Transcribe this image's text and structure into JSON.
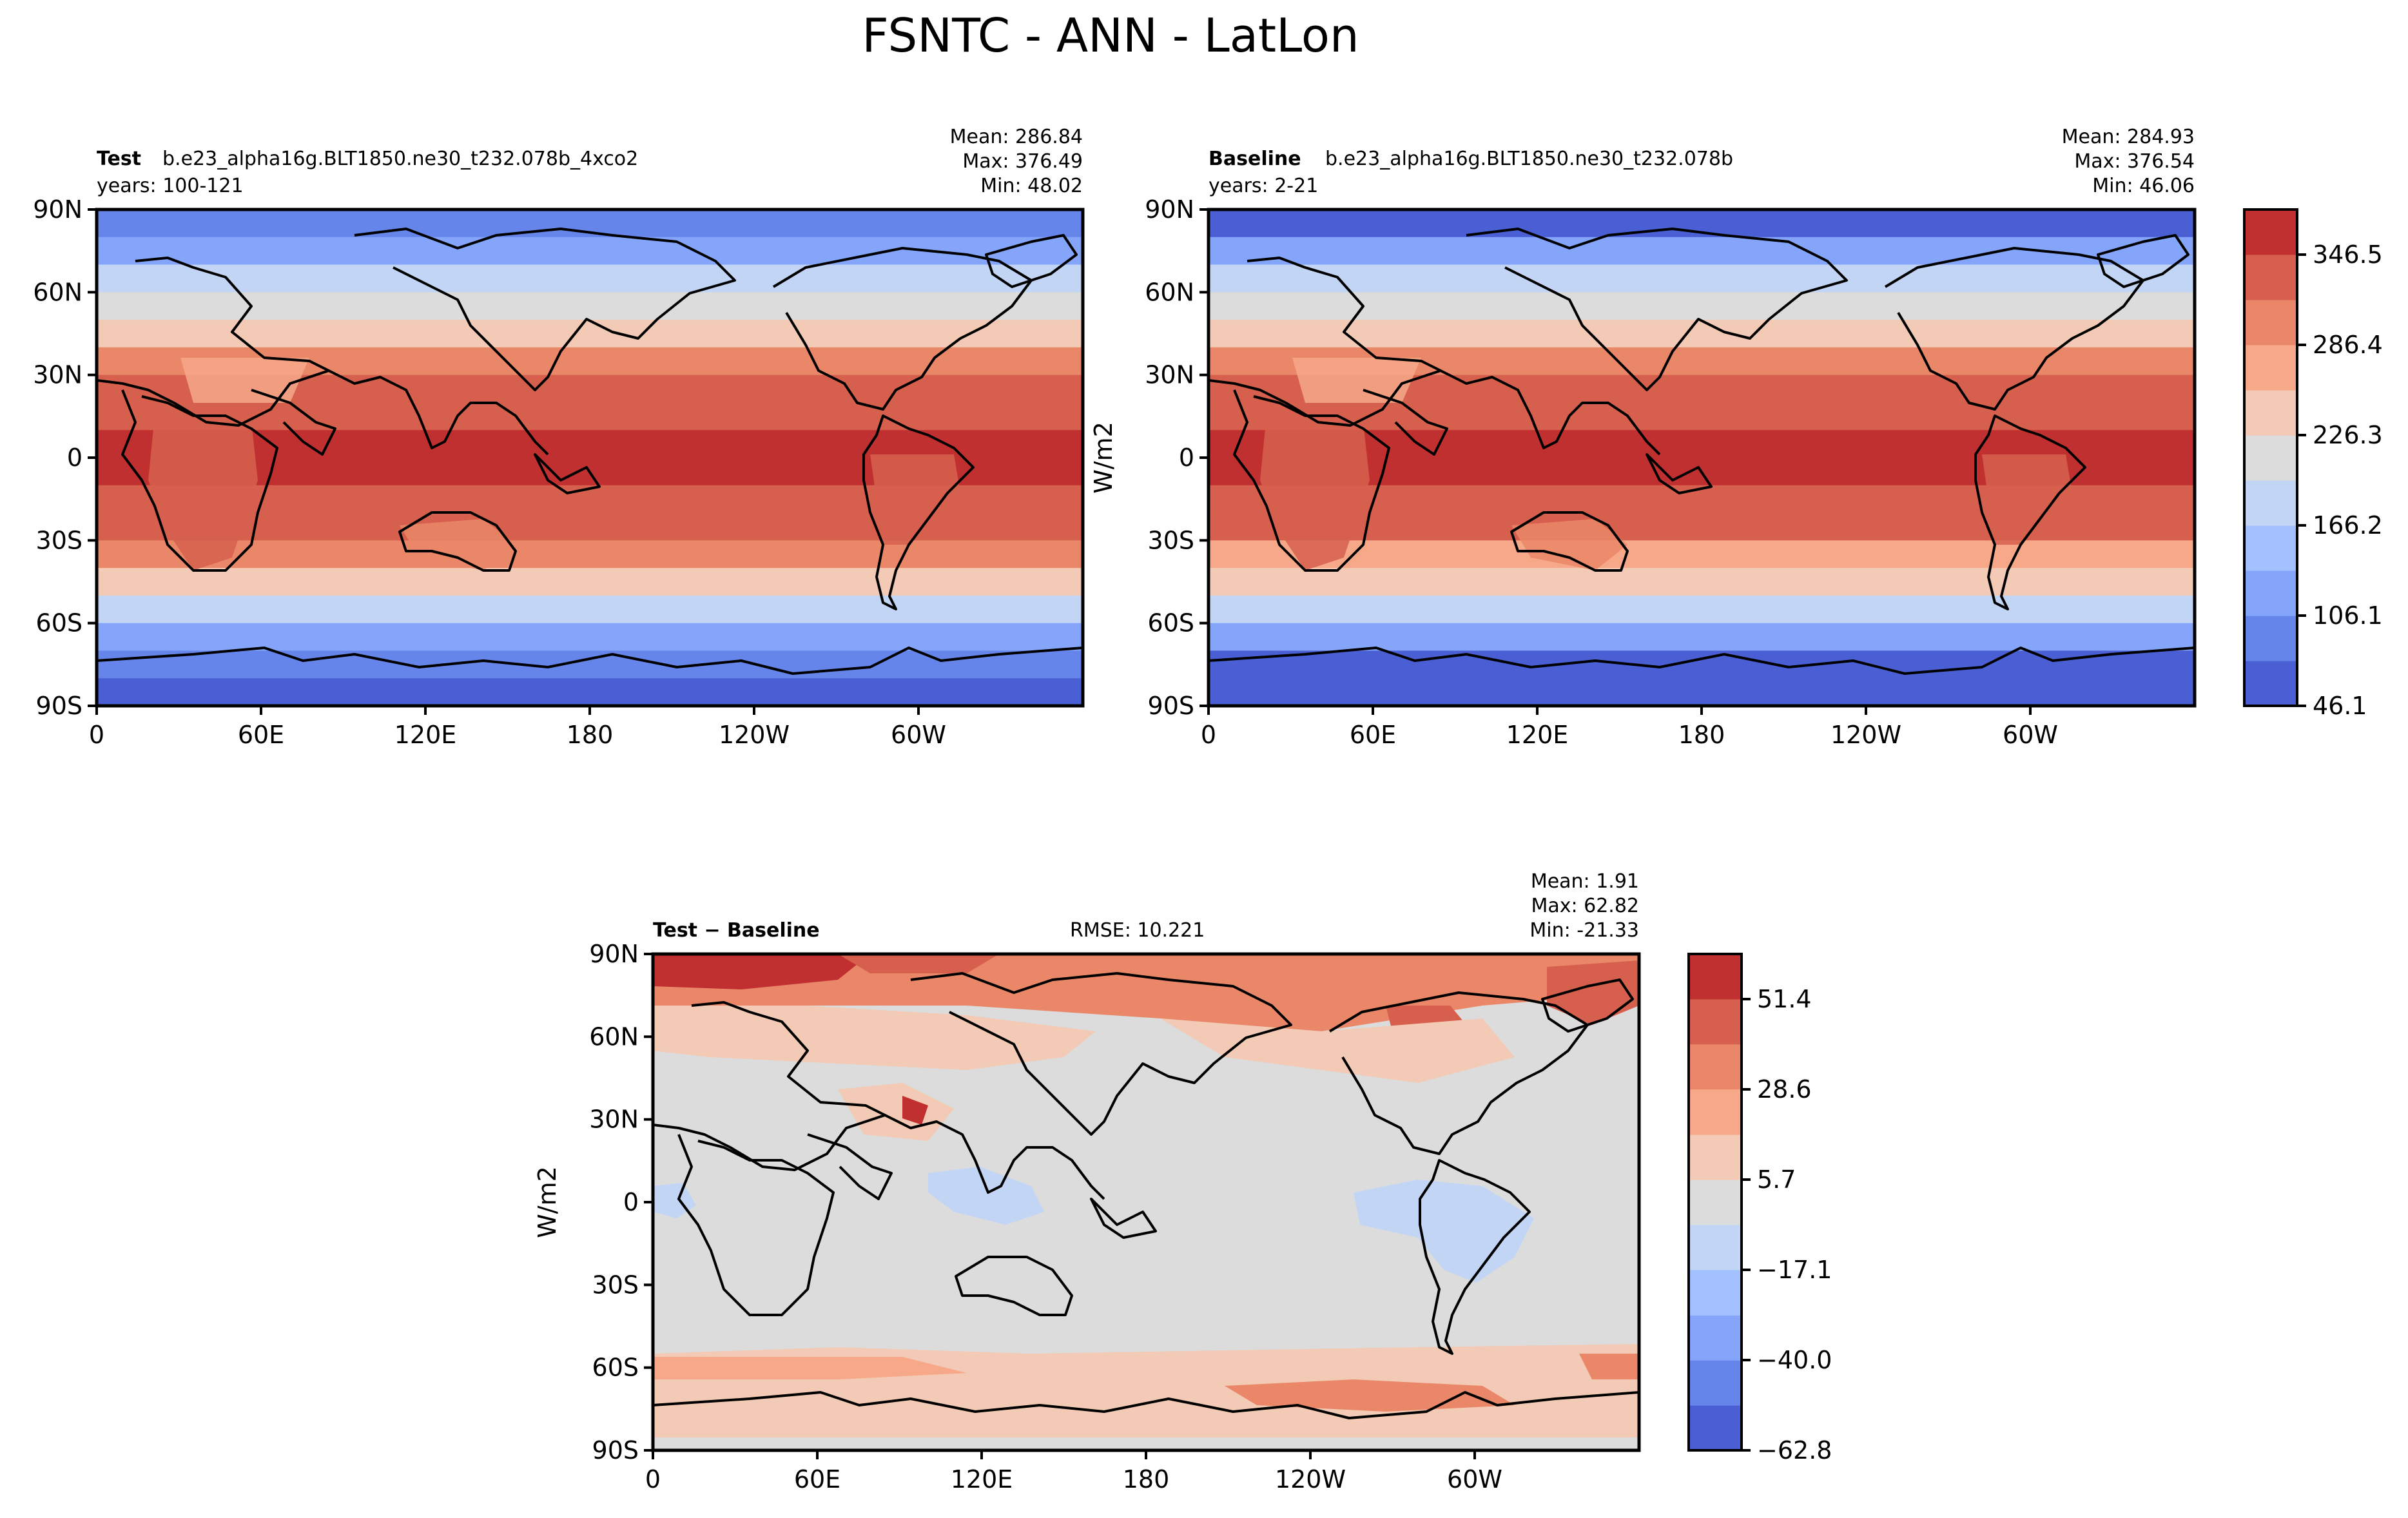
{
  "figure_title": "FSNTC - ANN - LatLon",
  "chart_data": [
    {
      "type": "heatmap",
      "panel": "test",
      "title_bold": "Test",
      "case_name": "b.e23_alpha16g.BLT1850.ne30_t232.078b_4xco2",
      "years": "years: 100-121",
      "stats": {
        "mean": "Mean: 286.84",
        "max": "Max: 376.49",
        "min": "Min: 48.02"
      },
      "x_ticks": [
        "0",
        "60E",
        "120E",
        "180",
        "120W",
        "60W"
      ],
      "y_ticks": [
        "90N",
        "60N",
        "30N",
        "0",
        "30S",
        "60S",
        "90S"
      ],
      "ylabel": "",
      "zonal_profile": {
        "lat": [
          90,
          80,
          70,
          60,
          50,
          40,
          30,
          20,
          10,
          0,
          -10,
          -20,
          -30,
          -40,
          -50,
          -60,
          -70,
          -80,
          -90
        ],
        "value": [
          90,
          110,
          160,
          210,
          235,
          275,
          310,
          335,
          350,
          352,
          350,
          335,
          305,
          270,
          215,
          160,
          95,
          60,
          50
        ]
      }
    },
    {
      "type": "heatmap",
      "panel": "baseline",
      "title_bold": "Baseline",
      "case_name": "b.e23_alpha16g.BLT1850.ne30_t232.078b",
      "years": "years: 2-21",
      "stats": {
        "mean": "Mean: 284.93",
        "max": "Max: 376.54",
        "min": "Min: 46.06"
      },
      "x_ticks": [
        "0",
        "60E",
        "120E",
        "180",
        "120W",
        "60W"
      ],
      "y_ticks": [
        "90N",
        "60N",
        "30N",
        "0",
        "30S",
        "60S",
        "90S"
      ],
      "ylabel": "W/m2",
      "zonal_profile": {
        "lat": [
          90,
          80,
          70,
          60,
          50,
          40,
          30,
          20,
          10,
          0,
          -10,
          -20,
          -30,
          -40,
          -50,
          -60,
          -70,
          -80,
          -90
        ],
        "value": [
          60,
          85,
          140,
          200,
          230,
          270,
          308,
          333,
          349,
          351,
          349,
          333,
          303,
          265,
          205,
          140,
          80,
          55,
          47
        ]
      },
      "colorbar": {
        "ticks": [
          "346.5",
          "286.4",
          "226.3",
          "166.2",
          "106.1",
          "46.1"
        ],
        "levels": [
          46.1,
          76.1,
          106.1,
          136.2,
          166.2,
          196.3,
          226.3,
          256.3,
          286.4,
          316.4,
          346.5,
          376.5
        ],
        "colors": [
          "#4a5fd3",
          "#6685ea",
          "#84a5f9",
          "#a3c1fe",
          "#c2d5f4",
          "#dcdcdc",
          "#f2cab5",
          "#f6a889",
          "#ea8769",
          "#d6604d",
          "#c03030"
        ]
      }
    },
    {
      "type": "heatmap",
      "panel": "diff",
      "title_bold": "Test − Baseline",
      "rmse": "RMSE: 10.221",
      "stats": {
        "mean": "Mean:  1.91",
        "max": "Max: 62.82",
        "min": "Min: -21.33"
      },
      "x_ticks": [
        "0",
        "60E",
        "120E",
        "180",
        "120W",
        "60W"
      ],
      "y_ticks": [
        "90N",
        "60N",
        "30N",
        "0",
        "30S",
        "60S",
        "90S"
      ],
      "ylabel": "W/m2",
      "colorbar": {
        "ticks": [
          "51.4",
          "28.6",
          "5.7",
          "−17.1",
          "−40.0",
          "−62.8"
        ],
        "levels": [
          -62.8,
          -51.4,
          -40.0,
          -28.6,
          -17.1,
          -5.7,
          5.7,
          17.1,
          28.6,
          40.0,
          51.4,
          62.8
        ],
        "colors": [
          "#4a5fd3",
          "#6685ea",
          "#84a5f9",
          "#a3c1fe",
          "#c2d5f4",
          "#dcdcdc",
          "#f2cab5",
          "#f6a889",
          "#ea8769",
          "#d6604d",
          "#c03030"
        ]
      }
    }
  ]
}
